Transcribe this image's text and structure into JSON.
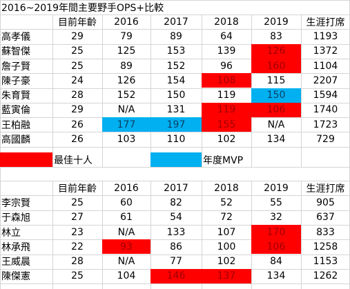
{
  "title": "2016~2019年間主要野手OPS+比較",
  "legend": {
    "best_ten": {
      "label": "最佳十人",
      "color": "#ff0000"
    },
    "mvp": {
      "label": "年度MVP",
      "color": "#00b0f0"
    }
  },
  "table1": {
    "headers": [
      "",
      "目前年齡",
      "2016",
      "2017",
      "2018",
      "2019",
      "生涯打席"
    ],
    "rows": [
      {
        "name": "高孝儀",
        "age": "29",
        "y2016": "79",
        "y2017": "89",
        "y2018": "64",
        "y2019": "83",
        "pa": "1193",
        "hl": {}
      },
      {
        "name": "蘇智傑",
        "age": "25",
        "y2016": "125",
        "y2017": "153",
        "y2018": "139",
        "y2019": "126",
        "pa": "1372",
        "hl": {
          "y2019": "red"
        }
      },
      {
        "name": "詹子賢",
        "age": "25",
        "y2016": "89",
        "y2017": "152",
        "y2018": "96",
        "y2019": "160",
        "pa": "1104",
        "hl": {
          "y2019": "red"
        }
      },
      {
        "name": "陳子豪",
        "age": "24",
        "y2016": "126",
        "y2017": "154",
        "y2018": "108",
        "y2019": "115",
        "pa": "2207",
        "hl": {
          "y2018": "red"
        }
      },
      {
        "name": "朱育賢",
        "age": "28",
        "y2016": "152",
        "y2017": "150",
        "y2018": "119",
        "y2019": "150",
        "pa": "1594",
        "hl": {
          "y2019": "blue"
        }
      },
      {
        "name": "藍寅倫",
        "age": "29",
        "y2016": "N/A",
        "y2017": "131",
        "y2018": "119",
        "y2019": "106",
        "pa": "1740",
        "hl": {
          "y2018": "red",
          "y2019": "red"
        }
      },
      {
        "name": "王柏融",
        "age": "26",
        "y2016": "177",
        "y2017": "197",
        "y2018": "155",
        "y2019": "N/A",
        "pa": "1723",
        "hl": {
          "y2016": "blue",
          "y2017": "blue",
          "y2018": "red"
        }
      },
      {
        "name": "高國麟",
        "age": "26",
        "y2016": "103",
        "y2017": "110",
        "y2018": "102",
        "y2019": "134",
        "pa": "729",
        "hl": {}
      }
    ]
  },
  "table2": {
    "headers": [
      "",
      "目前年齡",
      "2016",
      "2017",
      "2018",
      "2019",
      "生涯打席"
    ],
    "rows": [
      {
        "name": "李宗賢",
        "age": "25",
        "y2016": "60",
        "y2017": "82",
        "y2018": "52",
        "y2019": "55",
        "pa": "905",
        "hl": {}
      },
      {
        "name": "于森旭",
        "age": "27",
        "y2016": "61",
        "y2017": "54",
        "y2018": "72",
        "y2019": "32",
        "pa": "637",
        "hl": {}
      },
      {
        "name": "林立",
        "age": "23",
        "y2016": "N/A",
        "y2017": "133",
        "y2018": "107",
        "y2019": "170",
        "pa": "833",
        "hl": {
          "y2019": "red"
        }
      },
      {
        "name": "林承飛",
        "age": "22",
        "y2016": "93",
        "y2017": "86",
        "y2018": "100",
        "y2019": "106",
        "pa": "1258",
        "hl": {
          "y2016": "red",
          "y2019": "red"
        }
      },
      {
        "name": "王威晨",
        "age": "28",
        "y2016": "N/A",
        "y2017": "77",
        "y2018": "102",
        "y2019": "84",
        "pa": "1153",
        "hl": {}
      },
      {
        "name": "陳傑憲",
        "age": "25",
        "y2016": "104",
        "y2017": "146",
        "y2018": "137",
        "y2019": "134",
        "pa": "1262",
        "hl": {
          "y2017": "red",
          "y2018": "red"
        }
      }
    ]
  }
}
